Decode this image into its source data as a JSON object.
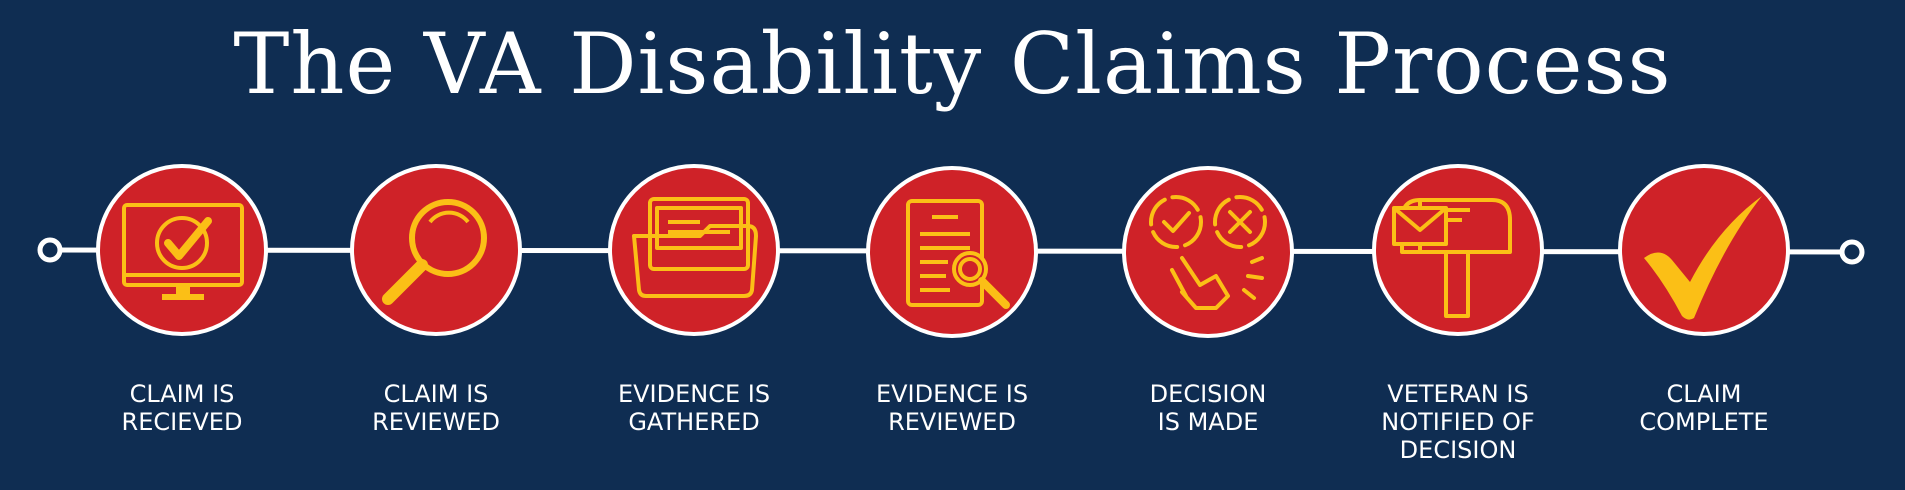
{
  "title": "The VA Disability Claims Process",
  "colors": {
    "background": "#0f2d52",
    "circle": "#cf2228",
    "icon": "#fbbf16",
    "line": "#ffffff"
  },
  "steps": [
    {
      "label_line1": "CLAIM IS",
      "label_line2": "RECIEVED",
      "label_line3": "",
      "icon": "computer-check-icon"
    },
    {
      "label_line1": "CLAIM IS",
      "label_line2": "REVIEWED",
      "label_line3": "",
      "icon": "magnifying-glass-icon"
    },
    {
      "label_line1": "EVIDENCE IS",
      "label_line2": "GATHERED",
      "label_line3": "",
      "icon": "folder-icon"
    },
    {
      "label_line1": "EVIDENCE IS",
      "label_line2": "REVIEWED",
      "label_line3": "",
      "icon": "document-search-icon"
    },
    {
      "label_line1": "DECISION",
      "label_line2": "IS MADE",
      "label_line3": "",
      "icon": "decision-hand-icon"
    },
    {
      "label_line1": "VETERAN IS",
      "label_line2": "NOTIFIED OF",
      "label_line3": "DECISION",
      "icon": "mailbox-icon"
    },
    {
      "label_line1": "CLAIM",
      "label_line2": "COMPLETE",
      "label_line3": "",
      "icon": "checkmark-icon"
    }
  ]
}
